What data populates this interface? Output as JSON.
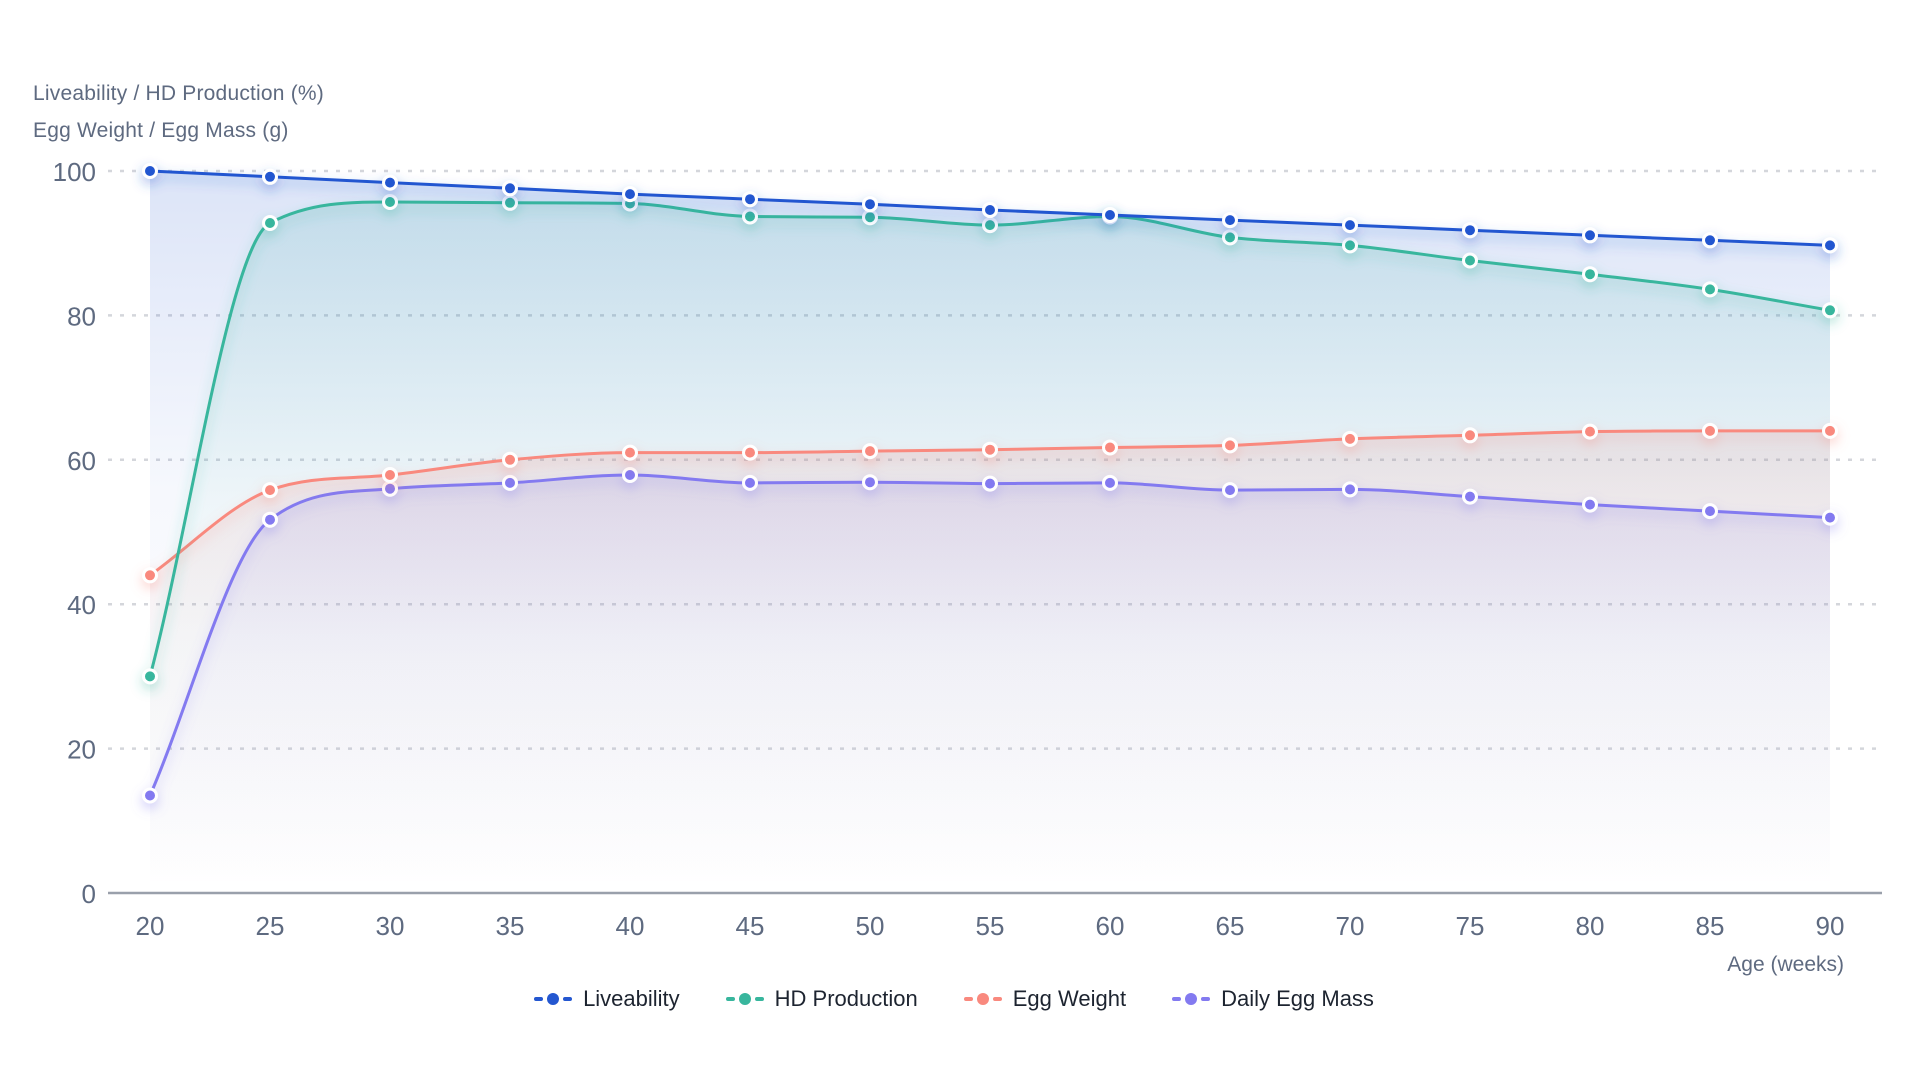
{
  "chart_data": {
    "type": "line",
    "title": "",
    "x_axis_label": "Age (weeks)",
    "y_axis_label_line1": "Liveability / HD Production (%)",
    "y_axis_label_line2": "Egg Weight / Egg Mass (g)",
    "x": [
      20,
      25,
      30,
      35,
      40,
      45,
      50,
      55,
      60,
      65,
      70,
      75,
      80,
      85,
      90
    ],
    "yticks": [
      0,
      20,
      40,
      60,
      80,
      100
    ],
    "ylim": [
      0,
      100
    ],
    "grid": "horizontal-dashed",
    "legend_position": "bottom-center",
    "marker": "circle-with-white-ring",
    "series": [
      {
        "name": "Liveability",
        "color": "#2457d0",
        "values": [
          100,
          99.2,
          98.4,
          97.6,
          96.8,
          96.1,
          95.4,
          94.6,
          93.9,
          93.2,
          92.5,
          91.8,
          91.1,
          90.4,
          89.7
        ]
      },
      {
        "name": "HD Production",
        "color": "#38b69d",
        "values": [
          30,
          92.8,
          95.7,
          95.6,
          95.5,
          93.7,
          93.6,
          92.5,
          93.7,
          90.8,
          89.7,
          87.6,
          85.7,
          83.6,
          80.7
        ]
      },
      {
        "name": "Egg Weight",
        "color": "#f9897e",
        "values": [
          44,
          55.8,
          57.9,
          60,
          61,
          61,
          61.2,
          61.4,
          61.7,
          62,
          62.9,
          63.4,
          63.9,
          64,
          64
        ]
      },
      {
        "name": "Daily Egg Mass",
        "color": "#837af0",
        "values": [
          13.5,
          51.7,
          56,
          56.8,
          57.9,
          56.8,
          56.9,
          56.7,
          56.8,
          55.8,
          55.9,
          54.9,
          53.8,
          52.9,
          52
        ]
      }
    ],
    "text_colors": {
      "axis": "#5e6a80",
      "legend": "#1d2430"
    },
    "grid_color": "#d4d6db",
    "axis_line_color": "#9aa0ab"
  }
}
